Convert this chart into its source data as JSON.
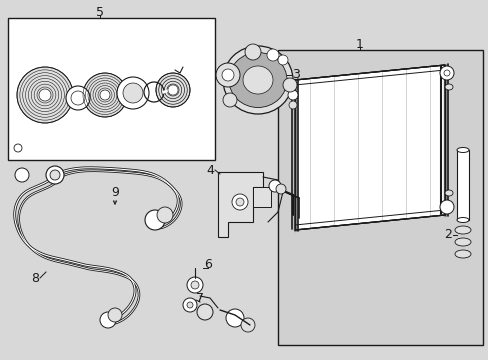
{
  "bg_color": "#d8d8d8",
  "white": "#ffffff",
  "black": "#1a1a1a",
  "gray_light": "#e0e0e0",
  "gray_mid": "#b0b0b0",
  "gray_box": "#d0d0d0",
  "figsize": [
    4.89,
    3.6
  ],
  "dpi": 100
}
